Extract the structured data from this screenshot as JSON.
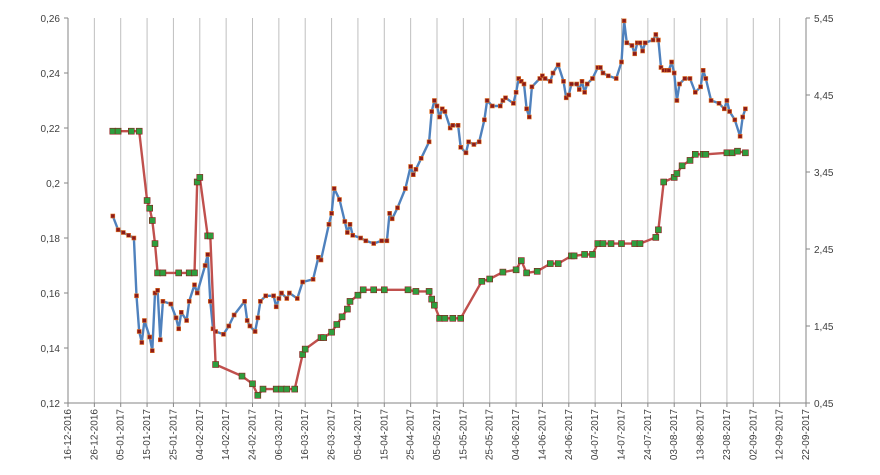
{
  "chart_data": {
    "type": "line",
    "title": "",
    "xlabel": "",
    "ylabel": "",
    "x_tick_labels": [
      "16-12-2016",
      "26-12-2016",
      "05-01-2017",
      "15-01-2017",
      "25-01-2017",
      "04-02-2017",
      "14-02-2017",
      "24-02-2017",
      "06-03-2017",
      "16-03-2017",
      "26-03-2017",
      "05-04-2017",
      "15-04-2017",
      "25-04-2017",
      "05-05-2017",
      "15-05-2017",
      "25-05-2017",
      "04-06-2017",
      "14-06-2017",
      "24-06-2017",
      "04-07-2017",
      "14-07-2017",
      "24-07-2017",
      "03-08-2017",
      "13-08-2017",
      "23-08-2017",
      "02-09-2017",
      "12-09-2017",
      "22-09-2017"
    ],
    "xlim": [
      "2016-12-16",
      "2017-09-22"
    ],
    "y_left": {
      "ticks": [
        0.12,
        0.14,
        0.16,
        0.18,
        0.2,
        0.22,
        0.24,
        0.26
      ],
      "tick_labels": [
        "0,12",
        "0,14",
        "0,16",
        "0,18",
        "0,2",
        "0,22",
        "0,24",
        "0,26"
      ],
      "ylim": [
        0.12,
        0.26
      ]
    },
    "y_right": {
      "ticks": [
        0.45,
        1.45,
        2.45,
        3.45,
        4.45,
        5.45
      ],
      "tick_labels": [
        "0,45",
        "1,45",
        "2,45",
        "3,45",
        "4,45",
        "5,45"
      ],
      "ylim": [
        0.45,
        5.45
      ]
    },
    "grid": {
      "vertical": true,
      "horizontal": false
    },
    "legend": "none",
    "series": [
      {
        "axis": "left",
        "color": "#4F81BD",
        "marker_color": "#8B1A1A",
        "points": [
          [
            "2017-01-02",
            0.188
          ],
          [
            "2017-01-04",
            0.183
          ],
          [
            "2017-01-06",
            0.182
          ],
          [
            "2017-01-08",
            0.181
          ],
          [
            "2017-01-10",
            0.18
          ],
          [
            "2017-01-11",
            0.159
          ],
          [
            "2017-01-12",
            0.146
          ],
          [
            "2017-01-13",
            0.142
          ],
          [
            "2017-01-14",
            0.15
          ],
          [
            "2017-01-16",
            0.144
          ],
          [
            "2017-01-17",
            0.139
          ],
          [
            "2017-01-18",
            0.16
          ],
          [
            "2017-01-19",
            0.161
          ],
          [
            "2017-01-20",
            0.143
          ],
          [
            "2017-01-21",
            0.157
          ],
          [
            "2017-01-24",
            0.156
          ],
          [
            "2017-01-26",
            0.151
          ],
          [
            "2017-01-27",
            0.147
          ],
          [
            "2017-01-28",
            0.153
          ],
          [
            "2017-01-30",
            0.15
          ],
          [
            "2017-01-31",
            0.157
          ],
          [
            "2017-02-02",
            0.163
          ],
          [
            "2017-02-03",
            0.16
          ],
          [
            "2017-02-06",
            0.17
          ],
          [
            "2017-02-07",
            0.174
          ],
          [
            "2017-02-08",
            0.157
          ],
          [
            "2017-02-09",
            0.147
          ],
          [
            "2017-02-10",
            0.146
          ],
          [
            "2017-02-13",
            0.145
          ],
          [
            "2017-02-15",
            0.148
          ],
          [
            "2017-02-17",
            0.152
          ],
          [
            "2017-02-21",
            0.157
          ],
          [
            "2017-02-22",
            0.15
          ],
          [
            "2017-02-23",
            0.148
          ],
          [
            "2017-02-25",
            0.146
          ],
          [
            "2017-02-26",
            0.151
          ],
          [
            "2017-02-27",
            0.157
          ],
          [
            "2017-03-01",
            0.159
          ],
          [
            "2017-03-04",
            0.159
          ],
          [
            "2017-03-05",
            0.155
          ],
          [
            "2017-03-06",
            0.158
          ],
          [
            "2017-03-07",
            0.16
          ],
          [
            "2017-03-09",
            0.158
          ],
          [
            "2017-03-10",
            0.16
          ],
          [
            "2017-03-13",
            0.158
          ],
          [
            "2017-03-15",
            0.164
          ],
          [
            "2017-03-19",
            0.165
          ],
          [
            "2017-03-21",
            0.173
          ],
          [
            "2017-03-22",
            0.172
          ],
          [
            "2017-03-25",
            0.185
          ],
          [
            "2017-03-26",
            0.189
          ],
          [
            "2017-03-27",
            0.198
          ],
          [
            "2017-03-29",
            0.194
          ],
          [
            "2017-03-31",
            0.186
          ],
          [
            "2017-04-01",
            0.182
          ],
          [
            "2017-04-02",
            0.185
          ],
          [
            "2017-04-03",
            0.181
          ],
          [
            "2017-04-06",
            0.18
          ],
          [
            "2017-04-08",
            0.179
          ],
          [
            "2017-04-11",
            0.178
          ],
          [
            "2017-04-14",
            0.179
          ],
          [
            "2017-04-16",
            0.179
          ],
          [
            "2017-04-17",
            0.189
          ],
          [
            "2017-04-18",
            0.187
          ],
          [
            "2017-04-20",
            0.191
          ],
          [
            "2017-04-23",
            0.198
          ],
          [
            "2017-04-25",
            0.206
          ],
          [
            "2017-04-26",
            0.203
          ],
          [
            "2017-04-27",
            0.205
          ],
          [
            "2017-04-29",
            0.209
          ],
          [
            "2017-05-02",
            0.215
          ],
          [
            "2017-05-03",
            0.226
          ],
          [
            "2017-05-04",
            0.23
          ],
          [
            "2017-05-05",
            0.228
          ],
          [
            "2017-05-06",
            0.224
          ],
          [
            "2017-05-07",
            0.227
          ],
          [
            "2017-05-08",
            0.226
          ],
          [
            "2017-05-10",
            0.22
          ],
          [
            "2017-05-11",
            0.221
          ],
          [
            "2017-05-13",
            0.221
          ],
          [
            "2017-05-14",
            0.213
          ],
          [
            "2017-05-16",
            0.211
          ],
          [
            "2017-05-17",
            0.215
          ],
          [
            "2017-05-19",
            0.214
          ],
          [
            "2017-05-21",
            0.215
          ],
          [
            "2017-05-23",
            0.223
          ],
          [
            "2017-05-24",
            0.23
          ],
          [
            "2017-05-26",
            0.228
          ],
          [
            "2017-05-29",
            0.228
          ],
          [
            "2017-05-30",
            0.23
          ],
          [
            "2017-05-31",
            0.231
          ],
          [
            "2017-06-03",
            0.229
          ],
          [
            "2017-06-04",
            0.233
          ],
          [
            "2017-06-05",
            0.238
          ],
          [
            "2017-06-06",
            0.237
          ],
          [
            "2017-06-07",
            0.236
          ],
          [
            "2017-06-08",
            0.227
          ],
          [
            "2017-06-09",
            0.224
          ],
          [
            "2017-06-10",
            0.235
          ],
          [
            "2017-06-13",
            0.238
          ],
          [
            "2017-06-14",
            0.239
          ],
          [
            "2017-06-15",
            0.238
          ],
          [
            "2017-06-17",
            0.237
          ],
          [
            "2017-06-18",
            0.24
          ],
          [
            "2017-06-20",
            0.243
          ],
          [
            "2017-06-22",
            0.237
          ],
          [
            "2017-06-23",
            0.231
          ],
          [
            "2017-06-24",
            0.232
          ],
          [
            "2017-06-25",
            0.236
          ],
          [
            "2017-06-27",
            0.236
          ],
          [
            "2017-06-28",
            0.234
          ],
          [
            "2017-06-29",
            0.237
          ],
          [
            "2017-06-30",
            0.233
          ],
          [
            "2017-07-01",
            0.236
          ],
          [
            "2017-07-03",
            0.238
          ],
          [
            "2017-07-05",
            0.242
          ],
          [
            "2017-07-06",
            0.242
          ],
          [
            "2017-07-07",
            0.24
          ],
          [
            "2017-07-09",
            0.239
          ],
          [
            "2017-07-12",
            0.238
          ],
          [
            "2017-07-14",
            0.244
          ],
          [
            "2017-07-15",
            0.259
          ],
          [
            "2017-07-16",
            0.251
          ],
          [
            "2017-07-18",
            0.25
          ],
          [
            "2017-07-19",
            0.247
          ],
          [
            "2017-07-20",
            0.251
          ],
          [
            "2017-07-21",
            0.251
          ],
          [
            "2017-07-22",
            0.248
          ],
          [
            "2017-07-23",
            0.251
          ],
          [
            "2017-07-26",
            0.252
          ],
          [
            "2017-07-27",
            0.254
          ],
          [
            "2017-07-28",
            0.252
          ],
          [
            "2017-07-29",
            0.242
          ],
          [
            "2017-07-30",
            0.241
          ],
          [
            "2017-07-31",
            0.241
          ],
          [
            "2017-08-01",
            0.241
          ],
          [
            "2017-08-02",
            0.244
          ],
          [
            "2017-08-03",
            0.24
          ],
          [
            "2017-08-04",
            0.23
          ],
          [
            "2017-08-05",
            0.236
          ],
          [
            "2017-08-07",
            0.238
          ],
          [
            "2017-08-09",
            0.238
          ],
          [
            "2017-08-11",
            0.233
          ],
          [
            "2017-08-13",
            0.235
          ],
          [
            "2017-08-14",
            0.241
          ],
          [
            "2017-08-15",
            0.238
          ],
          [
            "2017-08-17",
            0.23
          ],
          [
            "2017-08-20",
            0.229
          ],
          [
            "2017-08-22",
            0.227
          ],
          [
            "2017-08-23",
            0.23
          ],
          [
            "2017-08-24",
            0.226
          ],
          [
            "2017-08-26",
            0.223
          ],
          [
            "2017-08-28",
            0.217
          ],
          [
            "2017-08-29",
            0.224
          ],
          [
            "2017-08-30",
            0.227
          ]
        ]
      },
      {
        "axis": "right",
        "color": "#C0504D",
        "marker_color": "#2E9E3E",
        "points": [
          [
            "2017-01-02",
            3.98
          ],
          [
            "2017-01-04",
            3.98
          ],
          [
            "2017-01-09",
            3.98
          ],
          [
            "2017-01-12",
            3.98
          ],
          [
            "2017-01-15",
            3.08
          ],
          [
            "2017-01-16",
            2.98
          ],
          [
            "2017-01-17",
            2.82
          ],
          [
            "2017-01-18",
            2.52
          ],
          [
            "2017-01-19",
            2.14
          ],
          [
            "2017-01-21",
            2.14
          ],
          [
            "2017-01-27",
            2.14
          ],
          [
            "2017-01-31",
            2.14
          ],
          [
            "2017-02-02",
            2.14
          ],
          [
            "2017-02-03",
            3.32
          ],
          [
            "2017-02-04",
            3.38
          ],
          [
            "2017-02-07",
            2.62
          ],
          [
            "2017-02-08",
            2.62
          ],
          [
            "2017-02-10",
            0.95
          ],
          [
            "2017-02-20",
            0.8
          ],
          [
            "2017-02-24",
            0.7
          ],
          [
            "2017-02-26",
            0.55
          ],
          [
            "2017-02-28",
            0.63
          ],
          [
            "2017-03-05",
            0.63
          ],
          [
            "2017-03-07",
            0.63
          ],
          [
            "2017-03-09",
            0.63
          ],
          [
            "2017-03-12",
            0.63
          ],
          [
            "2017-03-15",
            1.08
          ],
          [
            "2017-03-16",
            1.15
          ],
          [
            "2017-03-22",
            1.3
          ],
          [
            "2017-03-23",
            1.3
          ],
          [
            "2017-03-26",
            1.37
          ],
          [
            "2017-03-28",
            1.47
          ],
          [
            "2017-03-30",
            1.57
          ],
          [
            "2017-04-01",
            1.67
          ],
          [
            "2017-04-02",
            1.77
          ],
          [
            "2017-04-05",
            1.85
          ],
          [
            "2017-04-07",
            1.92
          ],
          [
            "2017-04-11",
            1.92
          ],
          [
            "2017-04-15",
            1.92
          ],
          [
            "2017-04-24",
            1.92
          ],
          [
            "2017-04-27",
            1.9
          ],
          [
            "2017-05-02",
            1.9
          ],
          [
            "2017-05-03",
            1.8
          ],
          [
            "2017-05-04",
            1.72
          ],
          [
            "2017-05-06",
            1.55
          ],
          [
            "2017-05-08",
            1.55
          ],
          [
            "2017-05-11",
            1.55
          ],
          [
            "2017-05-14",
            1.55
          ],
          [
            "2017-05-22",
            2.03
          ],
          [
            "2017-05-25",
            2.06
          ],
          [
            "2017-05-30",
            2.15
          ],
          [
            "2017-06-04",
            2.18
          ],
          [
            "2017-06-06",
            2.3
          ],
          [
            "2017-06-08",
            2.14
          ],
          [
            "2017-06-12",
            2.16
          ],
          [
            "2017-06-17",
            2.26
          ],
          [
            "2017-06-20",
            2.26
          ],
          [
            "2017-06-25",
            2.36
          ],
          [
            "2017-06-26",
            2.36
          ],
          [
            "2017-06-30",
            2.38
          ],
          [
            "2017-07-03",
            2.38
          ],
          [
            "2017-07-05",
            2.52
          ],
          [
            "2017-07-07",
            2.52
          ],
          [
            "2017-07-10",
            2.52
          ],
          [
            "2017-07-14",
            2.52
          ],
          [
            "2017-07-19",
            2.52
          ],
          [
            "2017-07-21",
            2.52
          ],
          [
            "2017-07-27",
            2.6
          ],
          [
            "2017-07-28",
            2.7
          ],
          [
            "2017-07-30",
            3.32
          ],
          [
            "2017-08-03",
            3.38
          ],
          [
            "2017-08-04",
            3.43
          ],
          [
            "2017-08-06",
            3.53
          ],
          [
            "2017-08-09",
            3.6
          ],
          [
            "2017-08-11",
            3.68
          ],
          [
            "2017-08-14",
            3.68
          ],
          [
            "2017-08-15",
            3.68
          ],
          [
            "2017-08-23",
            3.7
          ],
          [
            "2017-08-25",
            3.7
          ],
          [
            "2017-08-27",
            3.72
          ],
          [
            "2017-08-30",
            3.7
          ]
        ]
      }
    ]
  }
}
